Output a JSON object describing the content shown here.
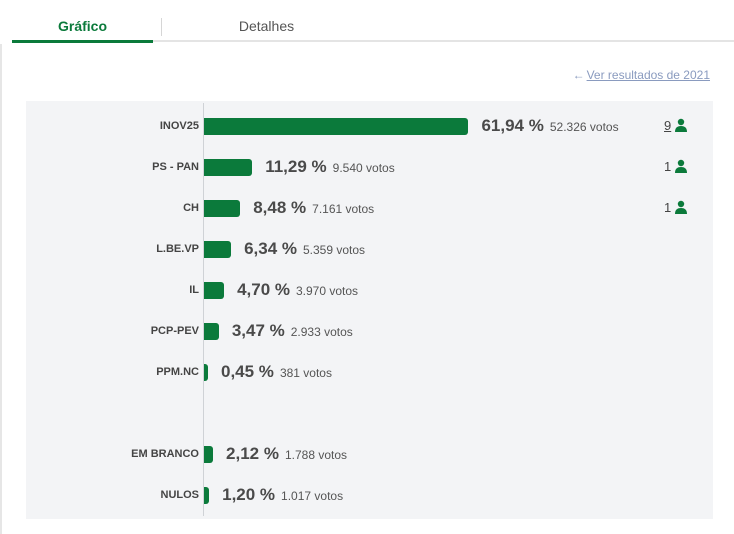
{
  "tabs": [
    {
      "label": "Gráfico",
      "active": true
    },
    {
      "label": "Detalhes",
      "active": false
    }
  ],
  "prev_results_link": "Ver resultados de 2021",
  "colors": {
    "accent": "#0b7a3b",
    "link": "#8a9bbf",
    "panel": "#f3f4f6"
  },
  "chart_data": {
    "type": "bar",
    "orientation": "horizontal",
    "value_unit": "%",
    "categories": [
      "INOV25",
      "PS - PAN",
      "CH",
      "L.BE.VP",
      "IL",
      "PCP-PEV",
      "PPM.NC",
      "EM BRANCO",
      "NULOS"
    ],
    "values": [
      61.94,
      11.29,
      8.48,
      6.34,
      4.7,
      3.47,
      0.45,
      2.12,
      1.2
    ],
    "rows": [
      {
        "label": "INOV25",
        "percent": 61.94,
        "percent_text": "61,94 %",
        "votes_text": "52.326 votos",
        "seats": "9",
        "seats_link": true
      },
      {
        "label": "PS - PAN",
        "percent": 11.29,
        "percent_text": "11,29 %",
        "votes_text": "9.540 votos",
        "seats": "1",
        "seats_link": false
      },
      {
        "label": "CH",
        "percent": 8.48,
        "percent_text": "8,48 %",
        "votes_text": "7.161 votos",
        "seats": "1",
        "seats_link": false
      },
      {
        "label": "L.BE.VP",
        "percent": 6.34,
        "percent_text": "6,34 %",
        "votes_text": "5.359 votos",
        "seats": null
      },
      {
        "label": "IL",
        "percent": 4.7,
        "percent_text": "4,70 %",
        "votes_text": "3.970 votos",
        "seats": null
      },
      {
        "label": "PCP-PEV",
        "percent": 3.47,
        "percent_text": "3,47 %",
        "votes_text": "2.933 votos",
        "seats": null
      },
      {
        "label": "PPM.NC",
        "percent": 0.45,
        "percent_text": "0,45 %",
        "votes_text": "381 votos",
        "seats": null
      },
      {
        "label": "EM BRANCO",
        "percent": 2.12,
        "percent_text": "2,12 %",
        "votes_text": "1.788 votos",
        "seats": null
      },
      {
        "label": "NULOS",
        "percent": 1.2,
        "percent_text": "1,20 %",
        "votes_text": "1.017 votos",
        "seats": null
      }
    ]
  }
}
